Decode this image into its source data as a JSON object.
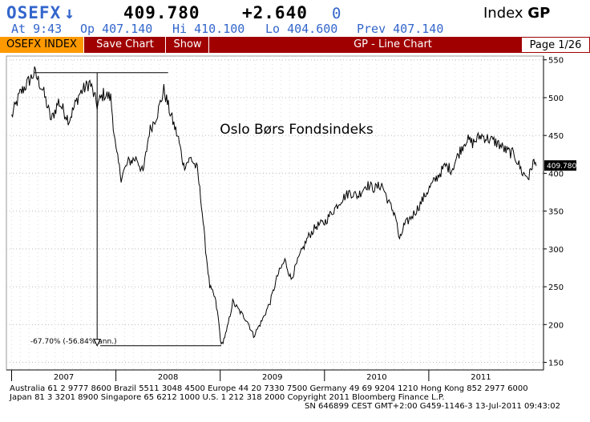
{
  "header": {
    "ticker": "OSEFX",
    "arrow": "↓",
    "price": "409.780",
    "change": "+2.640",
    "indicator": "0",
    "type_prefix": "Index",
    "type_key": "GP"
  },
  "quote": {
    "at": "At  9:43",
    "open": "Op 407.140",
    "high": "Hi 410.100",
    "low": "Lo 404.600",
    "prev": "Prev 407.140"
  },
  "toolbar": {
    "security": "OSEFX INDEX",
    "save": "Save Chart",
    "show": "Show",
    "title": "GP - Line Chart",
    "page": "Page 1/26"
  },
  "chart_data": {
    "type": "line",
    "title": "Oslo Børs Fondsindeks",
    "ylim": [
      140,
      555
    ],
    "yticks": [
      150,
      200,
      250,
      300,
      350,
      400,
      450,
      500,
      550
    ],
    "ytick_labels": [
      "150",
      "200",
      "250",
      "300",
      "350",
      "400",
      "450",
      "500",
      "550"
    ],
    "xlabels": [
      "2007",
      "2008",
      "2009",
      "2010",
      "2011"
    ],
    "xlabel_positions": [
      2007.0,
      2008.0,
      2009.0,
      2010.0,
      2011.0
    ],
    "last_value_label": "409.780",
    "last_value": 409.78,
    "annotation": {
      "text": "-67.70% (-56.84% ann.)",
      "from": {
        "x": 2006.72,
        "y": 533
      },
      "to": {
        "x": 2008.51,
        "y": 172
      }
    },
    "keypoints": [
      {
        "x": 2006.5,
        "y": 475
      },
      {
        "x": 2006.58,
        "y": 505
      },
      {
        "x": 2006.72,
        "y": 533
      },
      {
        "x": 2006.8,
        "y": 510
      },
      {
        "x": 2006.88,
        "y": 470
      },
      {
        "x": 2006.95,
        "y": 495
      },
      {
        "x": 2007.05,
        "y": 470
      },
      {
        "x": 2007.15,
        "y": 505
      },
      {
        "x": 2007.25,
        "y": 520
      },
      {
        "x": 2007.32,
        "y": 490
      },
      {
        "x": 2007.38,
        "y": 505
      },
      {
        "x": 2007.45,
        "y": 500
      },
      {
        "x": 2007.5,
        "y": 430
      },
      {
        "x": 2007.55,
        "y": 395
      },
      {
        "x": 2007.62,
        "y": 415
      },
      {
        "x": 2007.7,
        "y": 420
      },
      {
        "x": 2007.76,
        "y": 400
      },
      {
        "x": 2007.82,
        "y": 455
      },
      {
        "x": 2007.9,
        "y": 480
      },
      {
        "x": 2007.96,
        "y": 510
      },
      {
        "x": 2008.02,
        "y": 480
      },
      {
        "x": 2008.1,
        "y": 445
      },
      {
        "x": 2008.15,
        "y": 410
      },
      {
        "x": 2008.22,
        "y": 420
      },
      {
        "x": 2008.28,
        "y": 405
      },
      {
        "x": 2008.32,
        "y": 360
      },
      {
        "x": 2008.36,
        "y": 300
      },
      {
        "x": 2008.4,
        "y": 250
      },
      {
        "x": 2008.45,
        "y": 235
      },
      {
        "x": 2008.48,
        "y": 210
      },
      {
        "x": 2008.51,
        "y": 172
      },
      {
        "x": 2008.56,
        "y": 190
      },
      {
        "x": 2008.62,
        "y": 230
      },
      {
        "x": 2008.7,
        "y": 215
      },
      {
        "x": 2008.76,
        "y": 205
      },
      {
        "x": 2008.82,
        "y": 185
      },
      {
        "x": 2008.9,
        "y": 205
      },
      {
        "x": 2008.98,
        "y": 230
      },
      {
        "x": 2009.05,
        "y": 265
      },
      {
        "x": 2009.12,
        "y": 285
      },
      {
        "x": 2009.18,
        "y": 260
      },
      {
        "x": 2009.26,
        "y": 290
      },
      {
        "x": 2009.34,
        "y": 315
      },
      {
        "x": 2009.42,
        "y": 330
      },
      {
        "x": 2009.5,
        "y": 335
      },
      {
        "x": 2009.58,
        "y": 350
      },
      {
        "x": 2009.66,
        "y": 365
      },
      {
        "x": 2009.74,
        "y": 375
      },
      {
        "x": 2009.82,
        "y": 370
      },
      {
        "x": 2009.9,
        "y": 385
      },
      {
        "x": 2009.98,
        "y": 380
      },
      {
        "x": 2010.05,
        "y": 385
      },
      {
        "x": 2010.12,
        "y": 360
      },
      {
        "x": 2010.18,
        "y": 345
      },
      {
        "x": 2010.22,
        "y": 310
      },
      {
        "x": 2010.26,
        "y": 330
      },
      {
        "x": 2010.32,
        "y": 340
      },
      {
        "x": 2010.4,
        "y": 355
      },
      {
        "x": 2010.48,
        "y": 375
      },
      {
        "x": 2010.58,
        "y": 395
      },
      {
        "x": 2010.66,
        "y": 410
      },
      {
        "x": 2010.72,
        "y": 405
      },
      {
        "x": 2010.8,
        "y": 430
      },
      {
        "x": 2010.86,
        "y": 445
      },
      {
        "x": 2010.92,
        "y": 440
      },
      {
        "x": 2011.0,
        "y": 450
      },
      {
        "x": 2011.08,
        "y": 445
      },
      {
        "x": 2011.16,
        "y": 440
      },
      {
        "x": 2011.24,
        "y": 430
      },
      {
        "x": 2011.32,
        "y": 425
      },
      {
        "x": 2011.4,
        "y": 400
      },
      {
        "x": 2011.46,
        "y": 395
      },
      {
        "x": 2011.5,
        "y": 415
      },
      {
        "x": 2011.53,
        "y": 409.78
      }
    ]
  },
  "footer": {
    "line1": "Australia 61 2 9777 8600 Brazil 5511 3048 4500 Europe 44 20 7330 7500 Germany 49 69 9204 1210 Hong Kong 852 2977 6000",
    "line2": "Japan 81 3 3201 8900        Singapore 65 6212 1000        U.S. 1 212 318 2000        Copyright 2011 Bloomberg Finance L.P.",
    "line3": "SN 646899 CEST GMT+2:00 G459-1146-3 13-Jul-2011 09:43:02"
  }
}
